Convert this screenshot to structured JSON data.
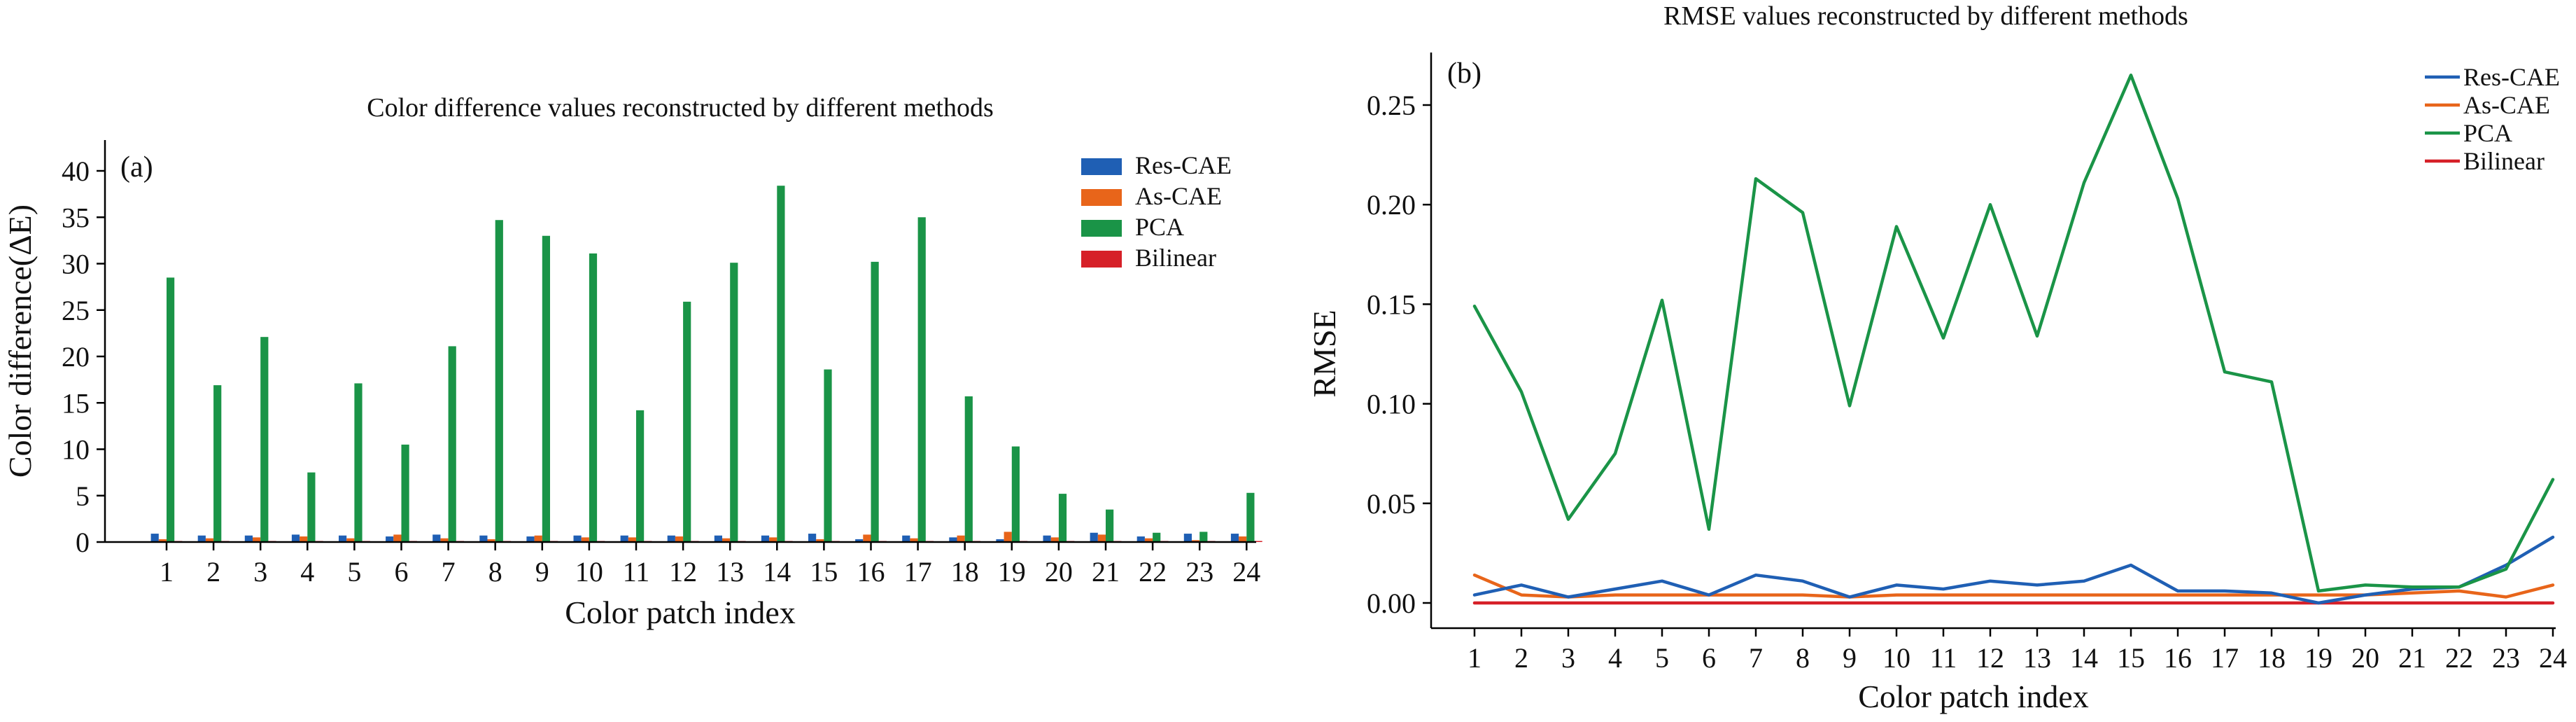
{
  "chart_data": [
    {
      "type": "bar",
      "panel_label": "(a)",
      "title": "Color difference values reconstructed by different methods",
      "xlabel": "Color patch index",
      "ylabel": "Color difference(ΔE)",
      "ylim": [
        0,
        42
      ],
      "yticks": [
        0,
        5,
        10,
        15,
        20,
        25,
        30,
        35,
        40
      ],
      "legend_position": "top-right",
      "grid": false,
      "categories": [
        "1",
        "2",
        "3",
        "4",
        "5",
        "6",
        "7",
        "8",
        "9",
        "10",
        "11",
        "12",
        "13",
        "14",
        "15",
        "16",
        "17",
        "18",
        "19",
        "20",
        "21",
        "22",
        "23",
        "24"
      ],
      "series": [
        {
          "name": "Res-CAE",
          "color": "#1f5fb4",
          "values": [
            0.9,
            0.7,
            0.7,
            0.8,
            0.7,
            0.6,
            0.8,
            0.7,
            0.6,
            0.7,
            0.7,
            0.7,
            0.7,
            0.7,
            0.9,
            0.3,
            0.7,
            0.5,
            0.3,
            0.7,
            1.0,
            0.6,
            0.9,
            0.9
          ]
        },
        {
          "name": "As-CAE",
          "color": "#e8651a",
          "values": [
            0.3,
            0.4,
            0.5,
            0.6,
            0.4,
            0.8,
            0.4,
            0.3,
            0.7,
            0.5,
            0.5,
            0.6,
            0.4,
            0.5,
            0.3,
            0.8,
            0.4,
            0.7,
            1.1,
            0.5,
            0.8,
            0.4,
            0.2,
            0.6
          ]
        },
        {
          "name": "PCA",
          "color": "#1a9447",
          "values": [
            28.5,
            16.9,
            22.1,
            7.5,
            17.1,
            10.5,
            21.1,
            34.7,
            33.0,
            31.1,
            14.2,
            25.9,
            30.1,
            38.4,
            18.6,
            30.2,
            35.0,
            15.7,
            10.3,
            5.2,
            3.5,
            1.0,
            1.1,
            5.3
          ]
        },
        {
          "name": "Bilinear",
          "color": "#d62028",
          "values": [
            0.05,
            0.05,
            0.05,
            0.05,
            0.05,
            0.05,
            0.05,
            0.05,
            0.05,
            0.05,
            0.05,
            0.05,
            0.05,
            0.05,
            0.05,
            0.05,
            0.05,
            0.05,
            0.05,
            0.05,
            0.05,
            0.05,
            0.05,
            0.05
          ]
        }
      ]
    },
    {
      "type": "line",
      "panel_label": "(b)",
      "title": "RMSE values reconstructed by different methods",
      "xlabel": "Color patch index",
      "ylabel": "RMSE",
      "ylim": [
        -0.01,
        0.275
      ],
      "yticks": [
        0.0,
        0.05,
        0.1,
        0.15,
        0.2,
        0.25
      ],
      "ytick_labels": [
        "0.00",
        "0.05",
        "0.10",
        "0.15",
        "0.20",
        "0.25"
      ],
      "legend_position": "top-right",
      "grid": false,
      "categories": [
        "1",
        "2",
        "3",
        "4",
        "5",
        "6",
        "7",
        "8",
        "9",
        "10",
        "11",
        "12",
        "13",
        "14",
        "15",
        "16",
        "17",
        "18",
        "19",
        "20",
        "21",
        "22",
        "23",
        "24"
      ],
      "series": [
        {
          "name": "Res-CAE",
          "color": "#1f5fb4",
          "values": [
            0.004,
            0.009,
            0.003,
            0.007,
            0.011,
            0.004,
            0.014,
            0.011,
            0.003,
            0.009,
            0.007,
            0.011,
            0.009,
            0.011,
            0.019,
            0.006,
            0.006,
            0.005,
            0.0,
            0.004,
            0.007,
            0.008,
            0.019,
            0.033
          ]
        },
        {
          "name": "As-CAE",
          "color": "#e8651a",
          "values": [
            0.014,
            0.004,
            0.003,
            0.004,
            0.004,
            0.004,
            0.004,
            0.004,
            0.003,
            0.004,
            0.004,
            0.004,
            0.004,
            0.004,
            0.004,
            0.004,
            0.004,
            0.004,
            0.004,
            0.004,
            0.005,
            0.006,
            0.003,
            0.009
          ]
        },
        {
          "name": "PCA",
          "color": "#1a9447",
          "values": [
            0.149,
            0.106,
            0.042,
            0.075,
            0.152,
            0.037,
            0.213,
            0.196,
            0.099,
            0.189,
            0.133,
            0.2,
            0.134,
            0.211,
            0.265,
            0.203,
            0.116,
            0.111,
            0.006,
            0.009,
            0.008,
            0.008,
            0.017,
            0.062
          ]
        },
        {
          "name": "Bilinear",
          "color": "#d62028",
          "values": [
            0,
            0,
            0,
            0,
            0,
            0,
            0,
            0,
            0,
            0,
            0,
            0,
            0,
            0,
            0,
            0,
            0,
            0,
            0,
            0,
            0,
            0,
            0,
            0
          ]
        }
      ]
    }
  ]
}
